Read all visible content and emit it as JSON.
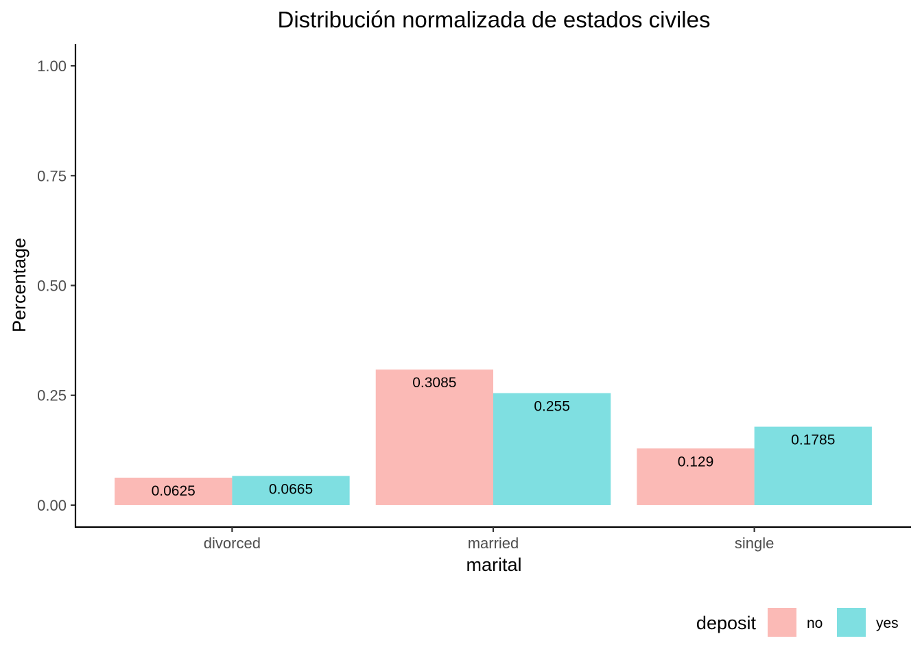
{
  "chart_data": {
    "type": "bar",
    "title": "Distribución normalizada de estados civiles",
    "xlabel": "marital",
    "ylabel": "Percentage",
    "categories": [
      "divorced",
      "married",
      "single"
    ],
    "series": [
      {
        "name": "no",
        "values": [
          0.0625,
          0.3085,
          0.129
        ],
        "labels": [
          "0.0625",
          "0.3085",
          "0.129"
        ],
        "color": "#F8766D"
      },
      {
        "name": "yes",
        "values": [
          0.0665,
          0.255,
          0.1785
        ],
        "labels": [
          "0.0665",
          "0.255",
          "0.1785"
        ],
        "color": "#00BFC4"
      }
    ],
    "bar_opacity": 0.5,
    "ylim": [
      -0.05,
      1.05
    ],
    "yticks": [
      0,
      0.25,
      0.5,
      0.75,
      1
    ],
    "ytick_labels": [
      "0.00",
      "0.25",
      "0.50",
      "0.75",
      "1.00"
    ],
    "grid": false,
    "legend": {
      "title": "deposit",
      "position": "bottom-right"
    }
  }
}
